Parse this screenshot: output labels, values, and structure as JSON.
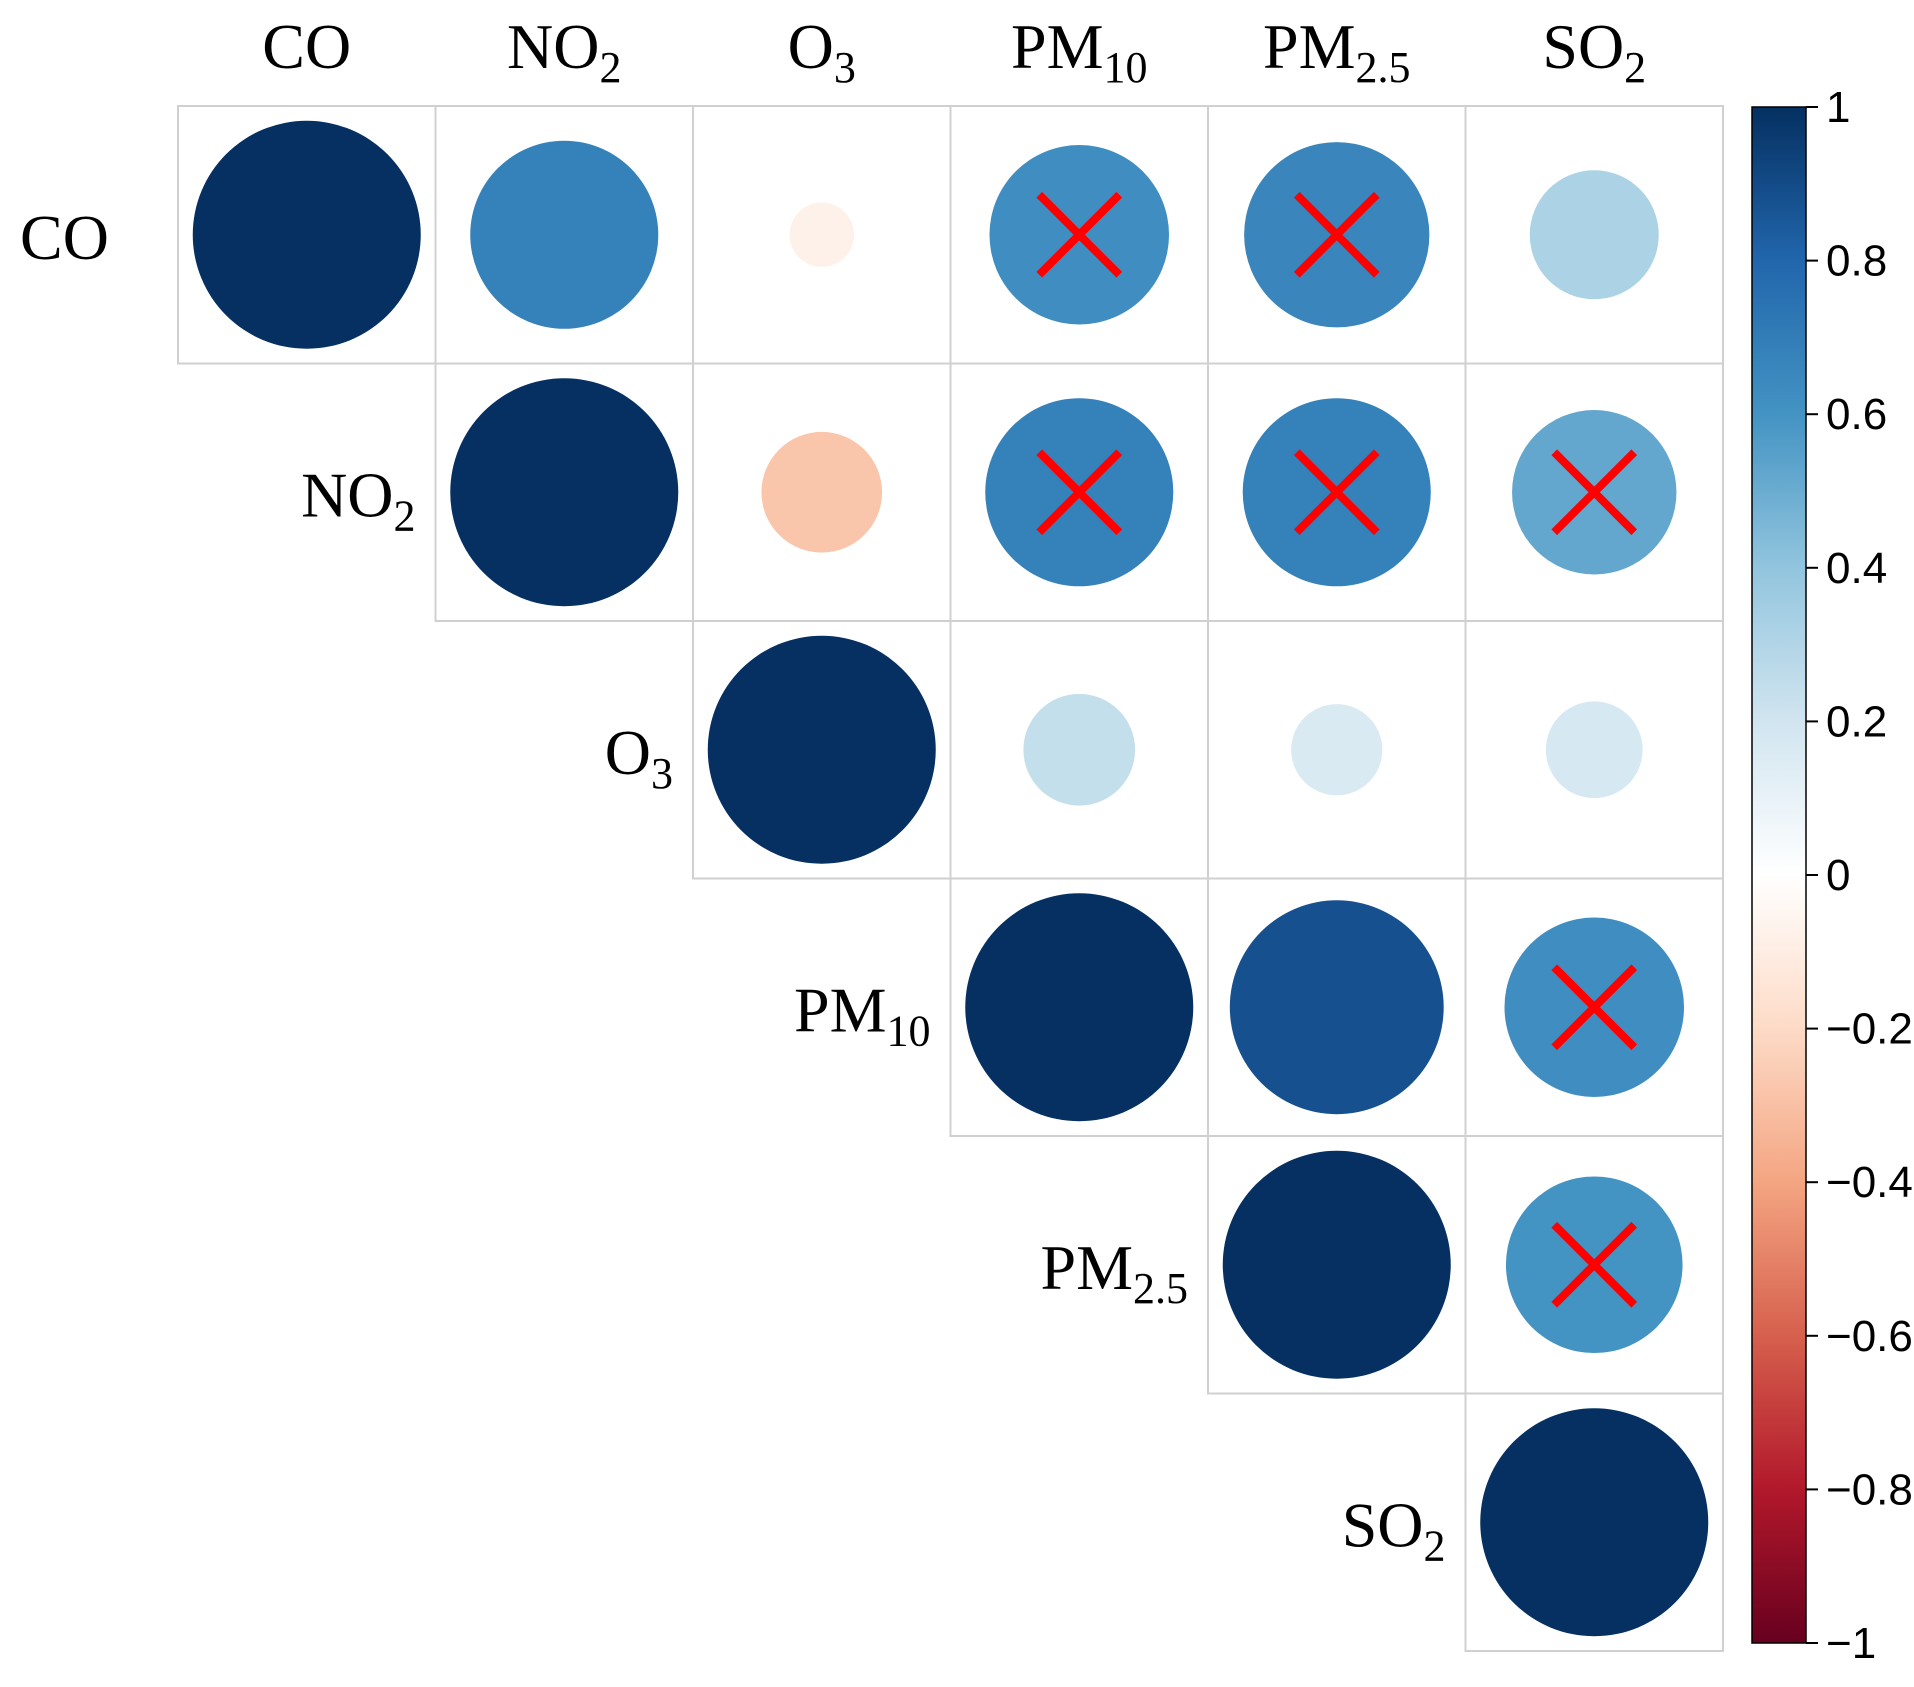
{
  "chart_data": {
    "type": "heatmap",
    "layout": "upper-triangle correlation plot with circles",
    "variables": [
      {
        "base": "CO",
        "sub": ""
      },
      {
        "base": "NO",
        "sub": "2"
      },
      {
        "base": "O",
        "sub": "3"
      },
      {
        "base": "PM",
        "sub": "10"
      },
      {
        "base": "PM",
        "sub": "2.5"
      },
      {
        "base": "SO",
        "sub": "2"
      }
    ],
    "matrix": [
      [
        1.0,
        0.68,
        -0.08,
        0.62,
        0.66,
        0.32
      ],
      [
        0.68,
        1.0,
        -0.28,
        0.68,
        0.68,
        0.52
      ],
      [
        -0.08,
        -0.28,
        1.0,
        0.24,
        0.16,
        0.18
      ],
      [
        0.62,
        0.68,
        0.24,
        1.0,
        0.88,
        0.62
      ],
      [
        0.66,
        0.68,
        0.16,
        0.88,
        1.0,
        0.6
      ],
      [
        0.32,
        0.52,
        0.18,
        0.62,
        0.6,
        1.0
      ]
    ],
    "crossed": [
      [
        0,
        3
      ],
      [
        0,
        4
      ],
      [
        1,
        3
      ],
      [
        1,
        4
      ],
      [
        1,
        5
      ],
      [
        3,
        5
      ],
      [
        4,
        5
      ]
    ],
    "colorbar": {
      "range": [
        -1,
        1
      ],
      "ticks": [
        "1",
        "0.8",
        "0.6",
        "0.4",
        "0.2",
        "0",
        "−0.2",
        "−0.4",
        "−0.6",
        "−0.8",
        "−1"
      ],
      "tick_values": [
        1,
        0.8,
        0.6,
        0.4,
        0.2,
        0,
        -0.2,
        -0.4,
        -0.6,
        -0.8,
        -1
      ],
      "colors": [
        "#67001f",
        "#b2182b",
        "#d6604d",
        "#f4a582",
        "#fddbc7",
        "#ffffff",
        "#d1e5f0",
        "#92c5de",
        "#4393c3",
        "#2166ac",
        "#053061"
      ]
    },
    "cross_color": "#ff0000",
    "grid": true,
    "legend": "right"
  }
}
